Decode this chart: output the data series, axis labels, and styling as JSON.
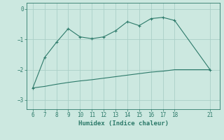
{
  "xlabel": "Humidex (Indice chaleur)",
  "bg_color": "#cce8e0",
  "line_color": "#2d7a6a",
  "grid_color": "#aacfc8",
  "upper_x": [
    6,
    7,
    8,
    9,
    10,
    11,
    12,
    13,
    14,
    15,
    16,
    17,
    18,
    21
  ],
  "upper_y": [
    -2.6,
    -1.6,
    -1.1,
    -0.65,
    -0.92,
    -0.98,
    -0.92,
    -0.72,
    -0.42,
    -0.55,
    -0.32,
    -0.28,
    -0.38,
    -2.0
  ],
  "lower_x": [
    6,
    7,
    8,
    9,
    10,
    11,
    12,
    13,
    14,
    15,
    16,
    17,
    18,
    21
  ],
  "lower_y": [
    -2.6,
    -2.55,
    -2.48,
    -2.42,
    -2.37,
    -2.33,
    -2.28,
    -2.23,
    -2.18,
    -2.13,
    -2.08,
    -2.05,
    -2.0,
    -2.0
  ],
  "xlim": [
    5.5,
    21.8
  ],
  "ylim": [
    -3.3,
    0.2
  ],
  "yticks": [
    0,
    -1,
    -2,
    -3
  ],
  "xticks": [
    6,
    7,
    8,
    9,
    10,
    11,
    12,
    13,
    14,
    15,
    16,
    17,
    18,
    21
  ],
  "tick_fontsize": 5.5,
  "xlabel_fontsize": 6.5
}
